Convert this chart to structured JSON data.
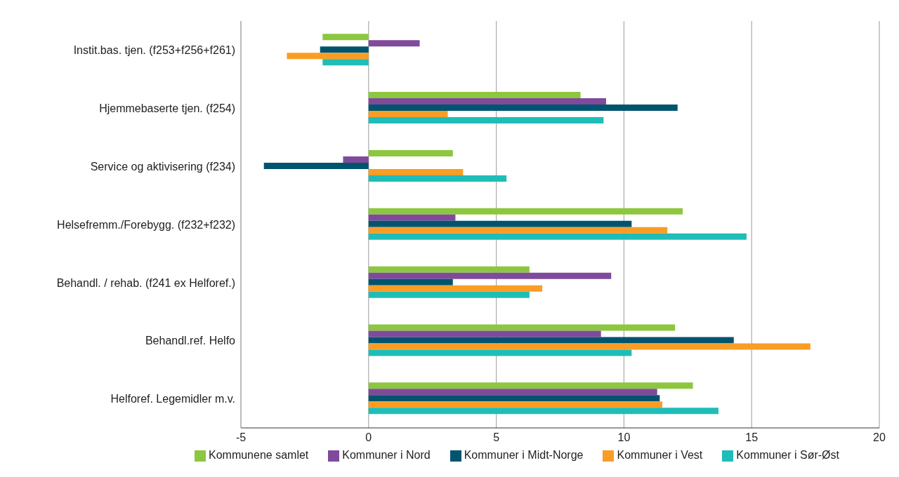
{
  "chart_data": {
    "type": "bar",
    "orientation": "horizontal",
    "categories": [
      "Instit.bas. tjen. (f253+f256+f261)",
      "Hjemmebaserte tjen. (f254)",
      "Service og aktivisering (f234)",
      "Helsefremm./Forebygg. (f232+f232)",
      "Behandl. / rehab. (f241 ex Helforef.)",
      "Behandl.ref. Helfo",
      "Helforef. Legemidler m.v."
    ],
    "series": [
      {
        "name": "Kommunene samlet",
        "color": "#8dc63f",
        "values": [
          -1.8,
          8.3,
          3.3,
          12.3,
          6.3,
          12.0,
          12.7
        ]
      },
      {
        "name": "Kommuner i Nord",
        "color": "#7f4a9c",
        "values": [
          2.0,
          9.3,
          -1.0,
          3.4,
          9.5,
          9.1,
          11.3
        ]
      },
      {
        "name": "Kommuner i Midt-Norge",
        "color": "#00546e",
        "values": [
          -1.9,
          12.1,
          -4.1,
          10.3,
          3.3,
          14.3,
          11.4
        ]
      },
      {
        "name": "Kommuner i Vest",
        "color": "#f99d25",
        "values": [
          -3.2,
          3.1,
          3.7,
          11.7,
          6.8,
          17.3,
          11.5
        ]
      },
      {
        "name": "Kommuner i Sør-Øst",
        "color": "#1fbdb8",
        "values": [
          -1.8,
          9.2,
          5.4,
          14.8,
          6.3,
          10.3,
          13.7
        ]
      }
    ],
    "xlim": [
      -5,
      20
    ],
    "xticks": [
      -5,
      0,
      5,
      10,
      15,
      20
    ],
    "grid": "x",
    "legend": "bottom"
  }
}
